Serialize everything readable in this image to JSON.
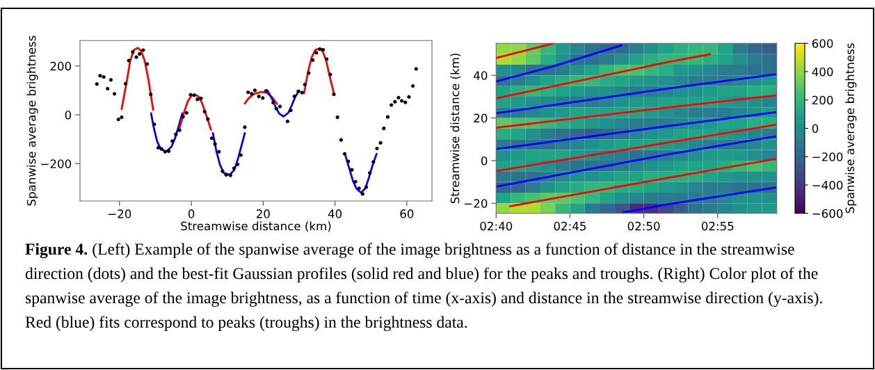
{
  "chart_data": [
    {
      "type": "scatter",
      "xlabel": "Streamwise distance (km)",
      "ylabel": "Spanwise average brightness",
      "xlim": [
        -31,
        67
      ],
      "ylim": [
        -353,
        304
      ],
      "xticks": [
        {
          "value": -20,
          "label": "−20"
        },
        0,
        20,
        40,
        60
      ],
      "yticks": [
        {
          "value": -200,
          "label": "−200"
        },
        0,
        200
      ],
      "annotations": [
        "Figure 4.",
        "(Left) Example of the spanwise average of the image brightness as a function of distance in the streamwise direction (dots) and the best-fit Gaussian profiles (solid red and blue) for the peaks and troughs. (Right) Color plot of the spanwise average of the image brightness, as a function of time (x-axis) and distance in the streamwise direction (y-axis). Red (blue) fits correspond to peaks (troughs) in the brightness data."
      ],
      "series": [
        {
          "type": "scatter",
          "color": "#000000",
          "x": [
            -26.3,
            -25.4,
            -24.4,
            -23.3,
            -22.4,
            -21.4,
            -20.3,
            -19.4,
            -18.3,
            -17.4,
            -16.3,
            -15.3,
            -14.4,
            -13.4,
            -12.3,
            -11.3,
            -10.3,
            -9.2,
            -8.3,
            -7.3,
            -6.3,
            -5.3,
            -4.3,
            -3.3,
            -2.3,
            -1.3,
            -0.2,
            0.8,
            1.7,
            2.7,
            3.7,
            4.6,
            5.7,
            6.6,
            7.7,
            8.7,
            9.7,
            10.9,
            11.9,
            12.9,
            13.8,
            14.9,
            15.8,
            16.8,
            17.7,
            18.8,
            19.9,
            20.8,
            22.8,
            23.7,
            24.7,
            26.8,
            27.7,
            28.7,
            29.8,
            30.8,
            31.6,
            32.7,
            33.8,
            34.8,
            35.8,
            36.7,
            37.7,
            38.7,
            39.7,
            40.7,
            41.7,
            42.7,
            43.7,
            44.7,
            45.7,
            46.7,
            47.7,
            48.7,
            49.7,
            50.7,
            51.7,
            52.7,
            53.6,
            54.7,
            55.7,
            56.7,
            57.7,
            58.6,
            59.6,
            60.6,
            61.7,
            62.6
          ],
          "values": [
            126,
            160,
            155,
            107,
            143,
            86,
            -19,
            -10,
            127,
            222,
            257,
            236,
            249,
            265,
            208,
            84,
            -39,
            -135,
            -140,
            -151,
            -149,
            -108,
            -80,
            -63,
            -8,
            8,
            82,
            80,
            63,
            67,
            13,
            -18,
            -96,
            -120,
            -151,
            -231,
            -246,
            -248,
            -219,
            -203,
            -165,
            -51,
            92,
            86,
            100,
            75,
            69,
            98,
            50,
            25,
            34,
            -27,
            18,
            75,
            96,
            91,
            124,
            171,
            224,
            254,
            269,
            266,
            228,
            165,
            84,
            -10,
            -103,
            -160,
            -191,
            -225,
            -274,
            -301,
            -324,
            -296,
            -238,
            -193,
            -138,
            -115,
            -56,
            -9,
            40,
            53,
            70,
            57,
            51,
            73,
            118,
            188
          ]
        },
        {
          "type": "line",
          "color": "#ff0000",
          "x": [
            -19.4,
            -18,
            -17,
            -16,
            -14.9,
            -14,
            -13,
            -12,
            -11.2,
            -10.6
          ],
          "values": [
            23,
            135,
            222,
            265,
            274,
            262,
            222,
            150,
            75,
            20
          ]
        },
        {
          "type": "line",
          "color": "#0000ff",
          "x": [
            -11.2,
            -10.5,
            -9.5,
            -8.5,
            -7,
            -5.5,
            -4.5,
            -3.5,
            -2.5
          ],
          "values": [
            6,
            -50,
            -110,
            -140,
            -151,
            -130,
            -95,
            -45,
            6
          ]
        },
        {
          "type": "line",
          "color": "#ff0000",
          "x": [
            -3.4,
            -2,
            -1,
            0,
            1,
            2,
            3,
            4,
            5.5
          ],
          "values": [
            -61,
            10,
            55,
            78,
            83,
            75,
            48,
            5,
            -61
          ]
        },
        {
          "type": "line",
          "color": "#0000ff",
          "x": [
            6,
            7,
            8,
            9,
            10.7,
            12,
            13,
            14,
            14.9
          ],
          "values": [
            -75,
            -150,
            -205,
            -238,
            -246,
            -225,
            -180,
            -125,
            -75
          ]
        },
        {
          "type": "line",
          "color": "#ff0000",
          "x": [
            14.9,
            16,
            17.5,
            19.6,
            21,
            22.5,
            23.9
          ],
          "values": [
            46,
            68,
            86,
            94,
            90,
            72,
            44
          ]
        },
        {
          "type": "line",
          "color": "#0000ff",
          "x": [
            21.2,
            22.5,
            23.5,
            24.5,
            25.7,
            27,
            28,
            29,
            30
          ],
          "values": [
            99,
            65,
            30,
            5,
            -7,
            8,
            40,
            75,
            99
          ]
        },
        {
          "type": "line",
          "color": "#ff0000",
          "x": [
            31.4,
            32.5,
            33.5,
            34.5,
            35.6,
            36.5,
            37.5,
            38.5,
            39.8
          ],
          "values": [
            88,
            175,
            235,
            265,
            271,
            262,
            225,
            160,
            82
          ]
        },
        {
          "type": "line",
          "color": "#0000ff",
          "x": [
            42.7,
            44,
            45,
            46,
            47.3,
            48.5,
            49.5,
            50.5,
            51.6
          ],
          "values": [
            -157,
            -220,
            -270,
            -303,
            -319,
            -300,
            -255,
            -205,
            -160
          ]
        }
      ]
    },
    {
      "type": "heatmap",
      "ylabel": "Streamwise distance (km)",
      "clabel": "Spanwise average brightness",
      "clim": [
        -600,
        600
      ],
      "cticks": [
        {
          "value": -600,
          "label": "−600"
        },
        {
          "value": -400,
          "label": "−400"
        },
        {
          "value": -200,
          "label": "−200"
        },
        0,
        200,
        400,
        600
      ],
      "xlim": [
        2.6667,
        2.9833
      ],
      "ylim": [
        -24.7,
        55
      ],
      "xticks": [
        {
          "value": 2.6667,
          "label": "02:40"
        },
        {
          "value": 2.75,
          "label": "02:45"
        },
        {
          "value": 2.8333,
          "label": "02:50"
        },
        {
          "value": 2.9167,
          "label": "02:55"
        }
      ],
      "yticks": [
        {
          "value": -20,
          "label": "−20"
        },
        0,
        20,
        40
      ],
      "x": [
        2.675,
        2.6917,
        2.7083,
        2.725,
        2.7417,
        2.7583,
        2.775,
        2.7917,
        2.8083,
        2.825,
        2.8417,
        2.8583,
        2.875,
        2.8917,
        2.9083,
        2.925,
        2.9417,
        2.9583,
        2.975
      ],
      "y": [
        52.5,
        47.5,
        42.5,
        37.5,
        32.5,
        27.5,
        22.5,
        17.5,
        12.5,
        7.5,
        2.5,
        -2.5,
        -7.5,
        -12.5,
        -17.5,
        -22.5
      ],
      "cells": [
        [
          400,
          400,
          300,
          200,
          50,
          -50,
          -150,
          -200,
          -200,
          -100,
          0,
          100,
          150,
          200,
          200,
          100,
          -100,
          -200,
          -250
        ],
        [
          450,
          400,
          300,
          150,
          0,
          -150,
          -150,
          -100,
          0,
          100,
          150,
          200,
          200,
          200,
          150,
          100,
          0,
          -100,
          -150
        ],
        [
          0,
          -50,
          -150,
          -150,
          -100,
          0,
          100,
          200,
          250,
          250,
          200,
          150,
          50,
          0,
          -50,
          -100,
          -100,
          -150,
          -150
        ],
        [
          -150,
          -100,
          0,
          100,
          150,
          200,
          200,
          150,
          100,
          50,
          0,
          0,
          -50,
          -100,
          -100,
          -100,
          -50,
          0,
          50
        ],
        [
          100,
          150,
          200,
          150,
          100,
          50,
          0,
          0,
          -50,
          -100,
          -100,
          -50,
          0,
          0,
          50,
          100,
          100,
          150,
          150
        ],
        [
          100,
          50,
          0,
          -50,
          -100,
          -100,
          -100,
          -50,
          0,
          50,
          50,
          100,
          100,
          100,
          100,
          50,
          0,
          0,
          -50
        ],
        [
          -100,
          -100,
          -50,
          0,
          50,
          100,
          100,
          100,
          100,
          100,
          50,
          0,
          -50,
          -100,
          -100,
          -100,
          -50,
          0,
          50
        ],
        [
          300,
          250,
          250,
          200,
          150,
          100,
          50,
          0,
          -50,
          -100,
          -100,
          -100,
          -50,
          0,
          50,
          100,
          100,
          150,
          150
        ],
        [
          150,
          100,
          0,
          -100,
          -150,
          -200,
          -250,
          -200,
          -150,
          -50,
          0,
          50,
          100,
          100,
          100,
          50,
          0,
          -50,
          -100
        ],
        [
          -100,
          -150,
          -150,
          -150,
          -100,
          -50,
          0,
          50,
          100,
          100,
          100,
          50,
          0,
          -50,
          -100,
          -100,
          -100,
          -50,
          0
        ],
        [
          0,
          50,
          100,
          100,
          100,
          50,
          0,
          -50,
          -100,
          -150,
          -150,
          -100,
          -50,
          0,
          50,
          50,
          50,
          0,
          -50
        ],
        [
          100,
          100,
          50,
          0,
          -100,
          -150,
          -150,
          -150,
          -100,
          -50,
          0,
          50,
          100,
          100,
          100,
          150,
          200,
          250,
          200
        ],
        [
          -100,
          -150,
          -150,
          -100,
          -50,
          0,
          0,
          50,
          100,
          100,
          150,
          150,
          150,
          150,
          100,
          50,
          0,
          0,
          0
        ],
        [
          -200,
          -200,
          -100,
          0,
          100,
          150,
          200,
          200,
          150,
          150,
          100,
          50,
          0,
          -50,
          -100,
          -100,
          -150,
          -150,
          -150
        ],
        [
          100,
          200,
          250,
          300,
          300,
          250,
          200,
          100,
          0,
          -50,
          -100,
          -100,
          -100,
          -100,
          -100,
          -50,
          0,
          0,
          0
        ],
        [
          400,
          450,
          450,
          350,
          200,
          100,
          -100,
          -200,
          -300,
          -450,
          -450,
          -350,
          -250,
          -150,
          -100,
          -50,
          0,
          50,
          50
        ]
      ],
      "series": [
        {
          "type": "line",
          "color": "#ff0000",
          "x": [
            2.6667,
            2.7317
          ],
          "values": [
            48.1,
            55
          ]
        },
        {
          "type": "line",
          "color": "#ff0000",
          "x": [
            2.6667,
            2.86,
            2.9083
          ],
          "values": [
            29.2,
            46.2,
            49.9
          ]
        },
        {
          "type": "line",
          "color": "#ff0000",
          "x": [
            2.6667,
            2.86,
            2.9823
          ],
          "values": [
            15.4,
            24.9,
            30.6
          ]
        },
        {
          "type": "line",
          "color": "#ff0000",
          "x": [
            2.6667,
            2.86,
            2.9823
          ],
          "values": [
            -4.9,
            8.4,
            16.8
          ]
        },
        {
          "type": "line",
          "color": "#ff0000",
          "x": [
            2.6823,
            2.86,
            2.9823
          ],
          "values": [
            -21.4,
            -8.1,
            0.8
          ]
        },
        {
          "type": "line",
          "color": "#0000ff",
          "x": [
            2.6667,
            2.7317,
            2.8083
          ],
          "values": [
            37.1,
            44.3,
            54.1
          ]
        },
        {
          "type": "line",
          "color": "#0000ff",
          "x": [
            2.6667,
            2.86,
            2.9823
          ],
          "values": [
            22.2,
            33.8,
            40.5
          ]
        },
        {
          "type": "line",
          "color": "#0000ff",
          "x": [
            2.6667,
            2.86,
            2.9823
          ],
          "values": [
            5.4,
            16.2,
            22.7
          ]
        },
        {
          "type": "line",
          "color": "#0000ff",
          "x": [
            2.6667,
            2.86,
            2.9823
          ],
          "values": [
            -12.2,
            2.9,
            11.4
          ]
        },
        {
          "type": "line",
          "color": "#0000ff",
          "x": [
            2.81,
            2.86,
            2.9823
          ],
          "values": [
            -24.3,
            -20.5,
            -12.6
          ]
        }
      ]
    }
  ]
}
